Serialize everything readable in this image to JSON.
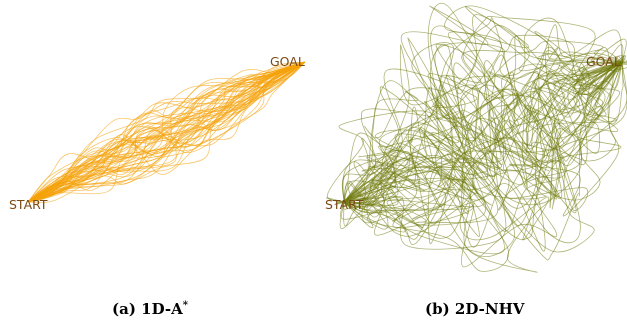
{
  "panels": [
    {
      "id": "a",
      "caption_tag": "(a)",
      "caption_name": "1D-A",
      "caption_superscript": "*",
      "start_label": "START",
      "goal_label": "GOAL",
      "trajectory_color": "#f5a10a",
      "trajectory_count": 60,
      "trajectory_spread": "narrow"
    },
    {
      "id": "b",
      "caption_tag": "(b)",
      "caption_name": "2D-NHV",
      "caption_superscript": "",
      "start_label": "START",
      "goal_label": "GOAL",
      "trajectory_color": "#6f7a0c",
      "trajectory_count": 60,
      "trajectory_spread": "wide"
    }
  ]
}
